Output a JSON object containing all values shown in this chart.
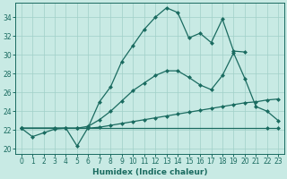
{
  "xlabel": "Humidex (Indice chaleur)",
  "ylabel": "",
  "background_color": "#c8eae4",
  "grid_color": "#a0d0c8",
  "line_color": "#1a6b60",
  "xlim": [
    -0.5,
    23.5
  ],
  "ylim": [
    19.5,
    35.5
  ],
  "yticks": [
    20,
    22,
    24,
    26,
    28,
    30,
    32,
    34
  ],
  "xticks": [
    0,
    1,
    2,
    3,
    4,
    5,
    6,
    7,
    8,
    9,
    10,
    11,
    12,
    13,
    14,
    15,
    16,
    17,
    18,
    19,
    20,
    21,
    22,
    23
  ],
  "line1_x": [
    0,
    1,
    2,
    3,
    4,
    5,
    6,
    7,
    8,
    9,
    10,
    11,
    12,
    13,
    14,
    15,
    16,
    17,
    18,
    19,
    20
  ],
  "line1_y": [
    22.2,
    21.3,
    21.7,
    22.1,
    22.2,
    20.3,
    22.3,
    25.0,
    26.6,
    29.3,
    31.0,
    32.7,
    34.0,
    35.0,
    34.5,
    31.8,
    32.3,
    31.3,
    33.8,
    30.4,
    30.3
  ],
  "line2_x": [
    0,
    3,
    4,
    5,
    6,
    7,
    8,
    9,
    10,
    11,
    12,
    13,
    14,
    15,
    16,
    17,
    18,
    19,
    20,
    21,
    22,
    23
  ],
  "line2_y": [
    22.2,
    22.2,
    22.2,
    22.2,
    22.2,
    22.3,
    22.5,
    22.7,
    22.9,
    23.1,
    23.3,
    23.5,
    23.7,
    23.9,
    24.1,
    24.3,
    24.5,
    24.7,
    24.9,
    25.0,
    25.2,
    25.3
  ],
  "line3_x": [
    0,
    5,
    6,
    7,
    8,
    9,
    10,
    11,
    12,
    13,
    14,
    15,
    16,
    17,
    18,
    19,
    20,
    21,
    22,
    23
  ],
  "line3_y": [
    22.2,
    22.2,
    22.4,
    23.1,
    24.0,
    25.1,
    26.2,
    27.0,
    27.8,
    28.3,
    28.3,
    27.6,
    26.8,
    26.3,
    27.8,
    30.2,
    27.5,
    24.5,
    24.0,
    23.0
  ],
  "line4_x": [
    0,
    22,
    23
  ],
  "line4_y": [
    22.2,
    22.2,
    22.2
  ]
}
